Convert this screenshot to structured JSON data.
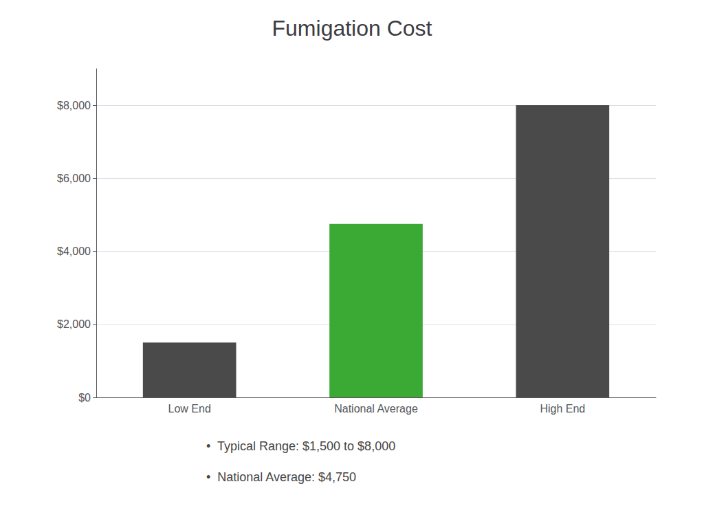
{
  "chart_data": {
    "type": "bar",
    "title": "Fumigation Cost",
    "categories": [
      "Low End",
      "National Average",
      "High End"
    ],
    "values": [
      1500,
      4750,
      8000
    ],
    "colors": [
      "#4a4a4a",
      "#3aaa35",
      "#4a4a4a"
    ],
    "ylim": [
      0,
      9000
    ],
    "yticks": [
      {
        "value": 0,
        "label": "$0"
      },
      {
        "value": 2000,
        "label": "$2,000"
      },
      {
        "value": 4000,
        "label": "$4,000"
      },
      {
        "value": 6000,
        "label": "$6,000"
      },
      {
        "value": 8000,
        "label": "$8,000"
      }
    ],
    "grid": true,
    "annotations": [
      "•  Typical Range: $1,500 to $8,000",
      "•  National Average: $4,750"
    ]
  }
}
